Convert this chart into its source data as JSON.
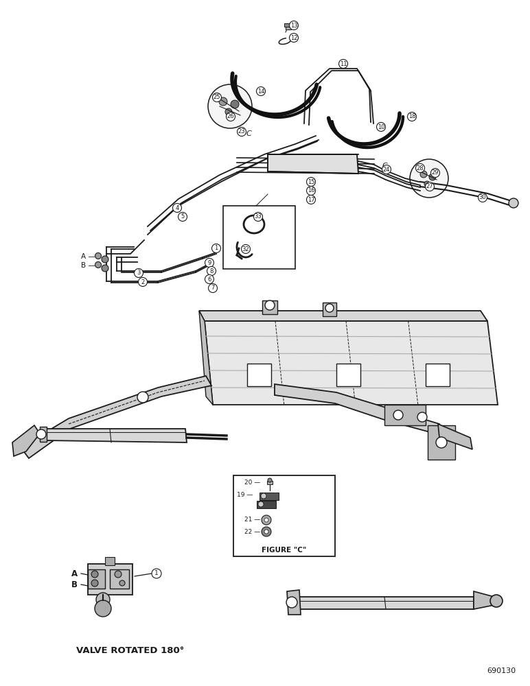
{
  "background_color": "#ffffff",
  "line_color": "#1a1a1a",
  "text_color": "#1a1a1a",
  "fig_width": 7.72,
  "fig_height": 10.0,
  "dpi": 100,
  "bottom_left_text": "VALVE ROTATED 180°",
  "bottom_right_text": "690130",
  "figure_c_label": "FIGURE \"C\""
}
